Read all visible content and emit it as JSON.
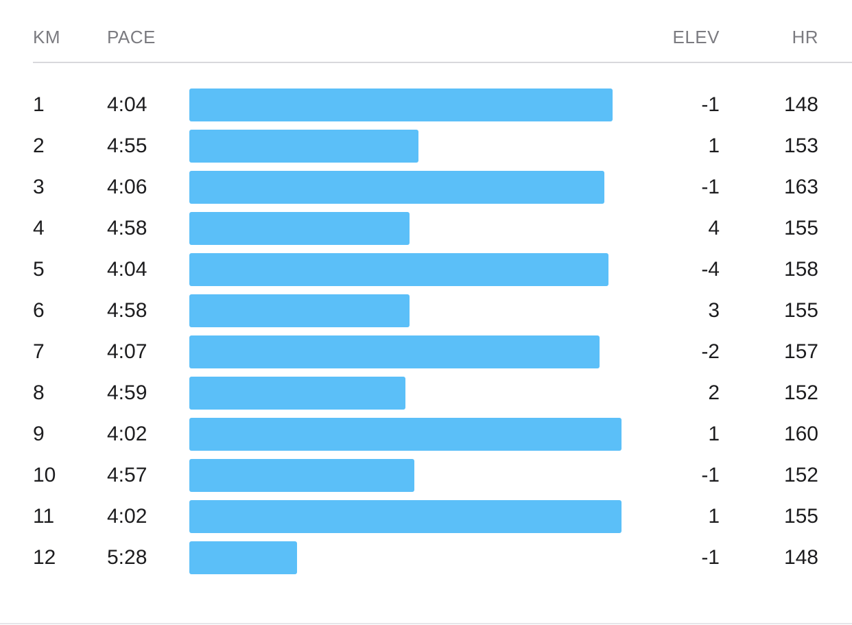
{
  "header": {
    "km": "KM",
    "pace": "PACE",
    "elev": "ELEV",
    "hr": "HR"
  },
  "colors": {
    "bar": "#5bbff8",
    "header_text": "#7b7b80",
    "row_text": "#1c1c1e",
    "divider": "#d8d8dc"
  },
  "splits": [
    {
      "km": "1",
      "pace": "4:04",
      "elev": "-1",
      "hr": "148",
      "speed_fraction": 0.881
    },
    {
      "km": "2",
      "pace": "4:55",
      "elev": "1",
      "hr": "153",
      "speed_fraction": 0.477
    },
    {
      "km": "3",
      "pace": "4:06",
      "elev": "-1",
      "hr": "163",
      "speed_fraction": 0.864
    },
    {
      "km": "4",
      "pace": "4:58",
      "elev": "4",
      "hr": "155",
      "speed_fraction": 0.459
    },
    {
      "km": "5",
      "pace": "4:04",
      "elev": "-4",
      "hr": "158",
      "speed_fraction": 0.873
    },
    {
      "km": "6",
      "pace": "4:58",
      "elev": "3",
      "hr": "155",
      "speed_fraction": 0.459
    },
    {
      "km": "7",
      "pace": "4:07",
      "elev": "-2",
      "hr": "157",
      "speed_fraction": 0.854
    },
    {
      "km": "8",
      "pace": "4:59",
      "elev": "2",
      "hr": "152",
      "speed_fraction": 0.45
    },
    {
      "km": "9",
      "pace": "4:02",
      "elev": "1",
      "hr": "160",
      "speed_fraction": 0.9
    },
    {
      "km": "10",
      "pace": "4:57",
      "elev": "-1",
      "hr": "152",
      "speed_fraction": 0.469
    },
    {
      "km": "11",
      "pace": "4:02",
      "elev": "1",
      "hr": "155",
      "speed_fraction": 0.9
    },
    {
      "km": "12",
      "pace": "5:28",
      "elev": "-1",
      "hr": "148",
      "speed_fraction": 0.224
    }
  ]
}
